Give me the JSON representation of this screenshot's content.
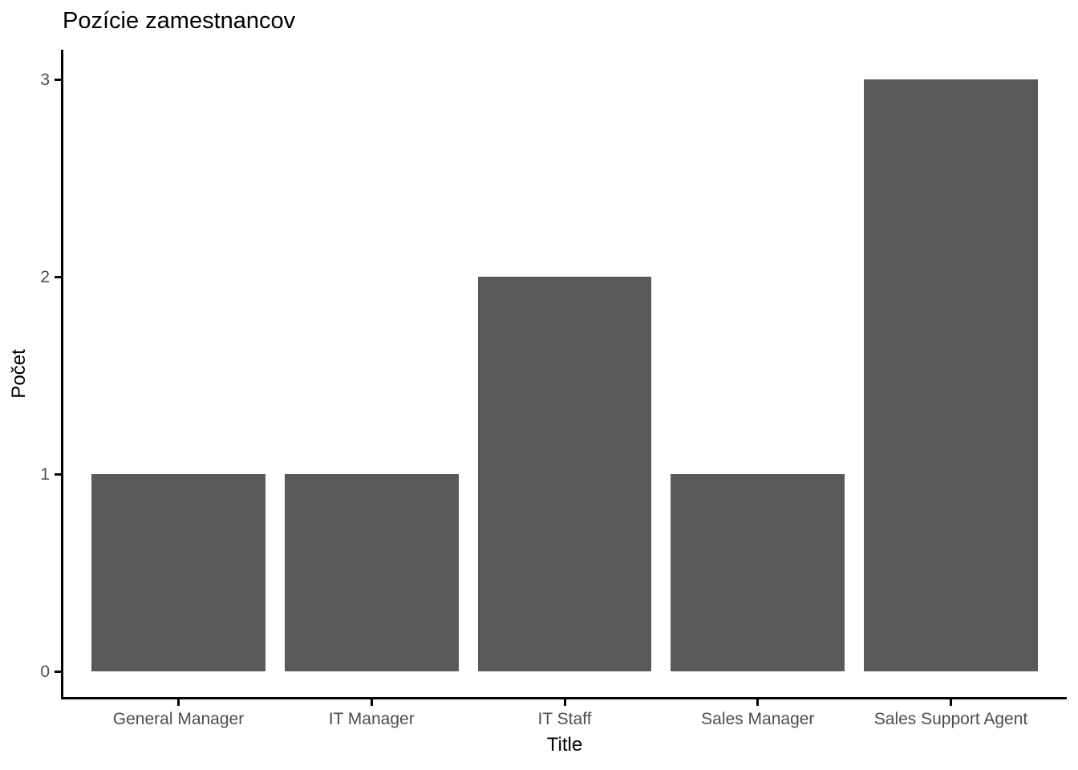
{
  "chart_data": {
    "type": "bar",
    "title": "Pozície zamestnancov",
    "xlabel": "Title",
    "ylabel": "Počet",
    "categories": [
      "General Manager",
      "IT Manager",
      "IT Staff",
      "Sales Manager",
      "Sales Support Agent"
    ],
    "values": [
      1,
      1,
      2,
      1,
      3
    ],
    "yticks": [
      "0",
      "1",
      "2",
      "3"
    ],
    "ylim": [
      0,
      3
    ],
    "grid": false,
    "legend_position": "none",
    "colors": {
      "bar_fill": "#595959",
      "axis_line": "#000000",
      "tick_label": "#4d4d4d",
      "title_text": "#000000",
      "background": "#ffffff"
    }
  }
}
